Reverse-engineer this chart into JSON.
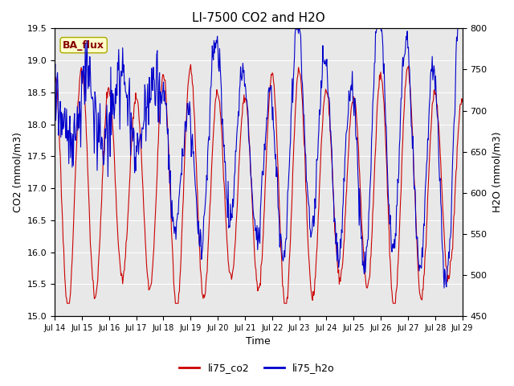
{
  "title": "LI-7500 CO2 and H2O",
  "xlabel": "Time",
  "ylabel_left": "CO2 (mmol/m3)",
  "ylabel_right": "H2O (mmol/m3)",
  "ylim_left": [
    15.0,
    19.5
  ],
  "ylim_right": [
    450,
    800
  ],
  "yticks_left": [
    15.0,
    15.5,
    16.0,
    16.5,
    17.0,
    17.5,
    18.0,
    18.5,
    19.0,
    19.5
  ],
  "yticks_right": [
    450,
    500,
    550,
    600,
    650,
    700,
    750,
    800
  ],
  "xtick_labels": [
    "Jul 14",
    "Jul 15",
    "Jul 16",
    "Jul 17",
    "Jul 18",
    "Jul 19",
    "Jul 20",
    "Jul 21",
    "Jul 22",
    "Jul 23",
    "Jul 24",
    "Jul 25",
    "Jul 26",
    "Jul 27",
    "Jul 28",
    "Jul 29"
  ],
  "color_co2": "#cc0000",
  "color_h2o": "#0000cc",
  "label_co2": "li75_co2",
  "label_h2o": "li75_h2o",
  "bg_color": "#e8e8e8",
  "annotation_text": "BA_flux",
  "annotation_facecolor": "#ffffcc",
  "annotation_edgecolor": "#aaaa00",
  "annotation_textcolor": "#880000",
  "figwidth": 6.4,
  "figheight": 4.8,
  "dpi": 100
}
